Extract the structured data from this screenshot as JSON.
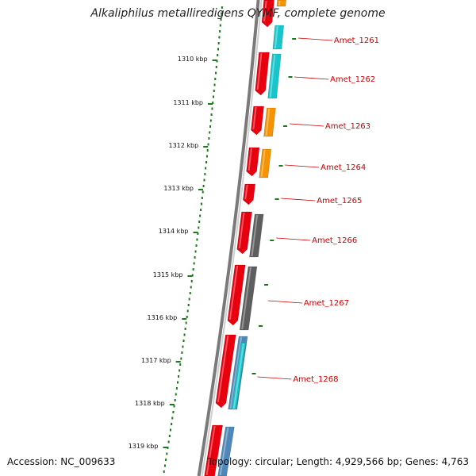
{
  "title": "Alkaliphilus metalliredigens QYMF, complete genome",
  "footer": {
    "accession": "Accession: NC_009633",
    "summary": "Topology: circular; Length: 4,929,566 bp; Genes: 4,763"
  },
  "colors": {
    "forward": "#e8000e",
    "cyan": "#17c6cc",
    "orange": "#f59300",
    "gray": "#5e5e5e",
    "blue": "#4f88b8",
    "tick": "#1a7a1a",
    "label": "#cc0000"
  },
  "scale_labels": [
    "1310 kbp",
    "1311 kbp",
    "1312 kbp",
    "1313 kbp",
    "1314 kbp",
    "1315 kbp",
    "1316 kbp",
    "1317 kbp",
    "1318 kbp",
    "1319 kbp"
  ],
  "gene_labels": [
    "Amet_1261",
    "Amet_1262",
    "Amet_1263",
    "Amet_1264",
    "Amet_1265",
    "Amet_1266",
    "Amet_1267",
    "Amet_1268"
  ]
}
